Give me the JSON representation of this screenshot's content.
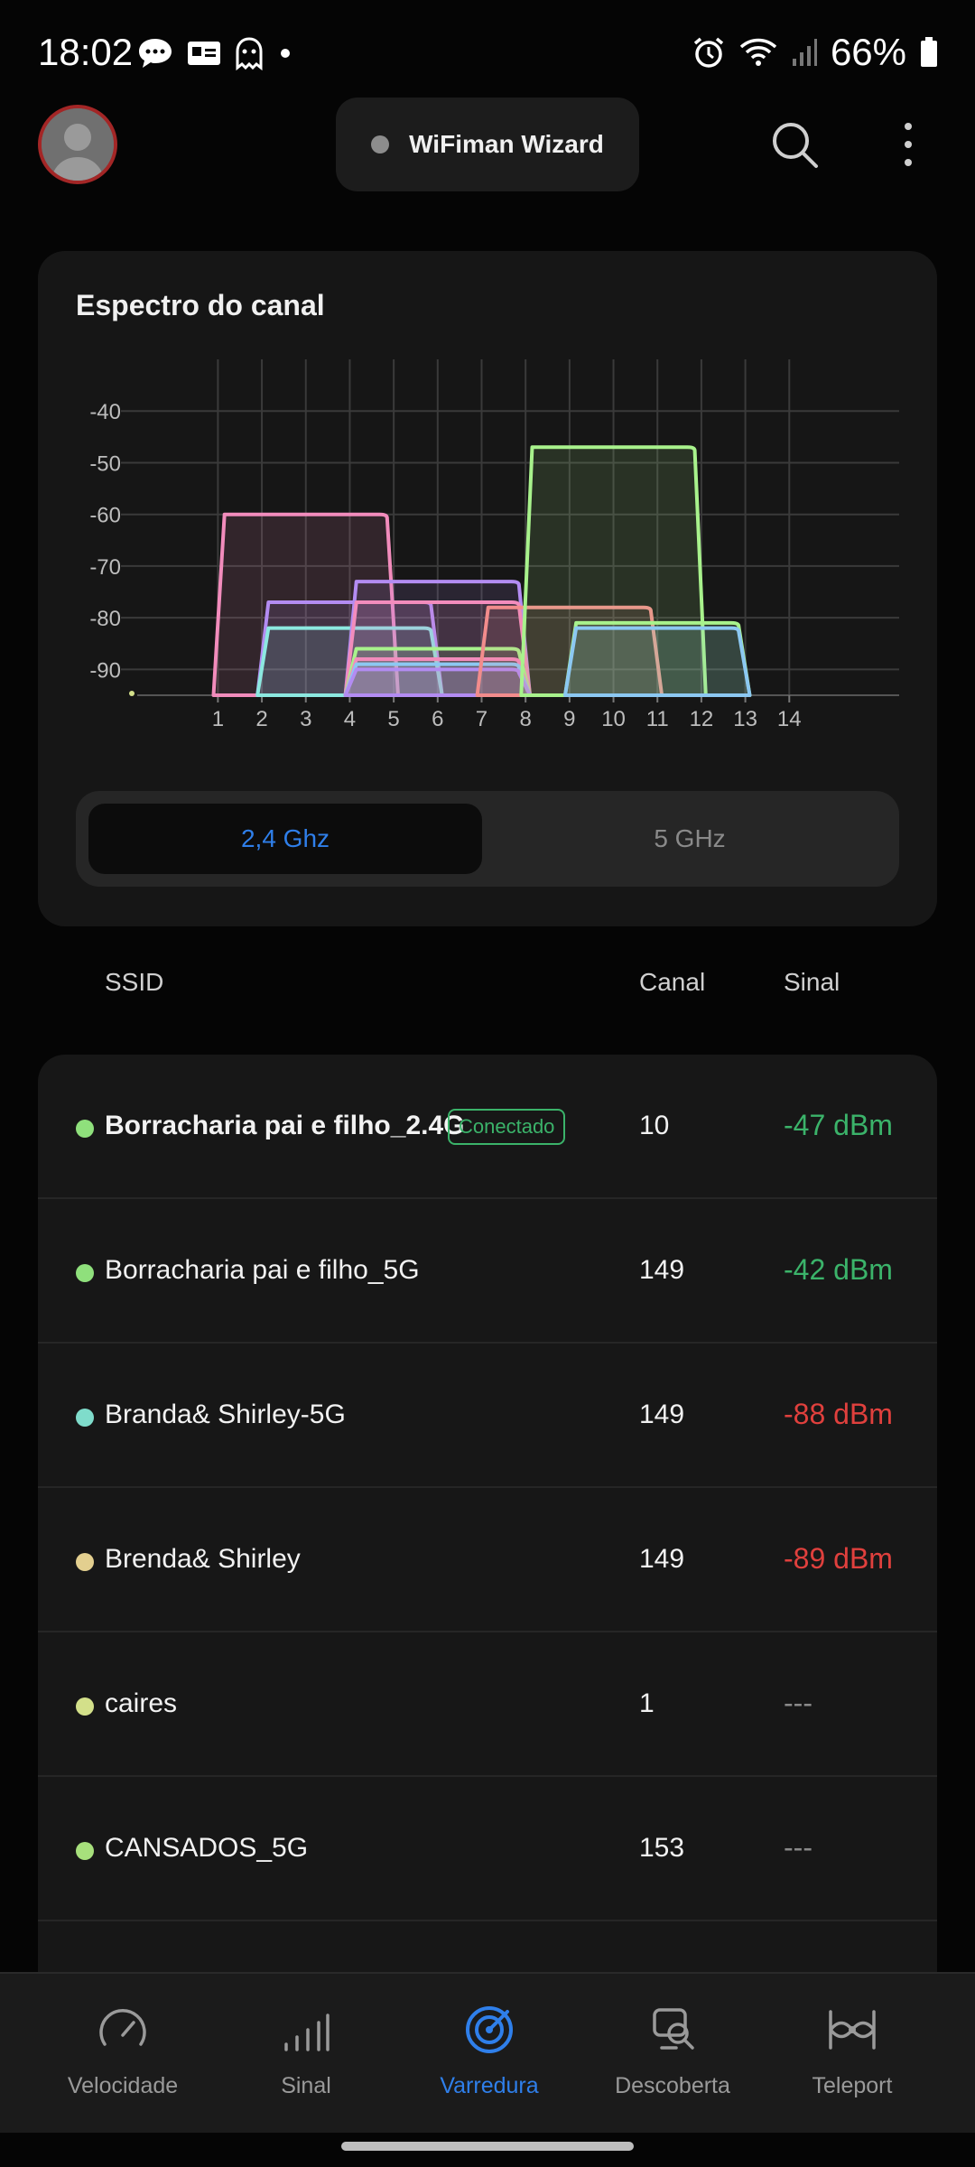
{
  "status_bar": {
    "time": "18:02",
    "battery": "66%",
    "left_icons": [
      "chat-bubble-icon",
      "notification-card-icon",
      "ghost-icon",
      "dot-icon"
    ],
    "right_icons": [
      "alarm-icon",
      "wifi-icon",
      "signal-icon",
      "battery-icon"
    ]
  },
  "header": {
    "wizard_label": "WiFiman Wizard",
    "icons": [
      "avatar",
      "search-icon",
      "more-vert-icon"
    ]
  },
  "spectrum": {
    "title": "Espectro do canal",
    "bands": {
      "active": "2,4 Ghz",
      "inactive": "5 GHz"
    }
  },
  "chart_data": {
    "type": "area",
    "x_ticks": [
      "1",
      "2",
      "3",
      "4",
      "5",
      "6",
      "7",
      "8",
      "9",
      "10",
      "11",
      "12",
      "13",
      "14"
    ],
    "y_ticks": [
      "-40",
      "-50",
      "-60",
      "-70",
      "-80",
      "-90"
    ],
    "ylim": [
      -95,
      -30
    ],
    "grid": true,
    "series": [
      {
        "center": 3,
        "level": -60,
        "color": "#f28cbc"
      },
      {
        "center": 4,
        "level": -77,
        "color": "#b38cf2"
      },
      {
        "center": 4,
        "level": -82,
        "color": "#8ce8e0"
      },
      {
        "center": 6,
        "level": -73,
        "color": "#b38cf2"
      },
      {
        "center": 6,
        "level": -77,
        "color": "#f28cbc"
      },
      {
        "center": 6,
        "level": -86,
        "color": "#a8f28c"
      },
      {
        "center": 6,
        "level": -88,
        "color": "#f28cbc"
      },
      {
        "center": 6,
        "level": -89,
        "color": "#8cc8f2"
      },
      {
        "center": 6,
        "level": -90,
        "color": "#b38cf2"
      },
      {
        "center": 9,
        "level": -78,
        "color": "#f28c8c"
      },
      {
        "center": 10,
        "level": -47,
        "color": "#a8f28c"
      },
      {
        "center": 11,
        "level": -81,
        "color": "#a8f28c"
      },
      {
        "center": 11,
        "level": -82,
        "color": "#8cc8f2"
      }
    ]
  },
  "table": {
    "col_ssid": "SSID",
    "col_channel": "Canal",
    "col_signal": "Sinal",
    "rows": [
      {
        "ssid": "Borracharia pai e filho_2.4G",
        "badge": "Conectado",
        "channel": "10",
        "signal": "-47 dBm",
        "dot": "#8fe07c",
        "sigcolor": "#3bb36a"
      },
      {
        "ssid": "Borracharia pai e filho_5G",
        "channel": "149",
        "signal": "-42 dBm",
        "dot": "#8fe07c",
        "sigcolor": "#3bb36a"
      },
      {
        "ssid": "Branda& Shirley-5G",
        "channel": "149",
        "signal": "-88 dBm",
        "dot": "#7fdccb",
        "sigcolor": "#e0403d"
      },
      {
        "ssid": "Brenda& Shirley",
        "channel": "149",
        "signal": "-89 dBm",
        "dot": "#e3cf8f",
        "sigcolor": "#e0403d"
      },
      {
        "ssid": "caires",
        "channel": "1",
        "signal": "---",
        "dot": "#d3e08a",
        "sigcolor": "#8a8a8a"
      },
      {
        "ssid": "CANSADOS_5G",
        "channel": "153",
        "signal": "---",
        "dot": "#a7e07c",
        "sigcolor": "#8a8a8a"
      }
    ]
  },
  "bottom_nav": [
    {
      "label": "Velocidade",
      "icon": "speedometer-icon",
      "active": false
    },
    {
      "label": "Sinal",
      "icon": "signal-bars-icon",
      "active": false
    },
    {
      "label": "Varredura",
      "icon": "radar-scan-icon",
      "active": true
    },
    {
      "label": "Descoberta",
      "icon": "device-discovery-icon",
      "active": false
    },
    {
      "label": "Teleport",
      "icon": "teleport-icon",
      "active": false
    }
  ]
}
